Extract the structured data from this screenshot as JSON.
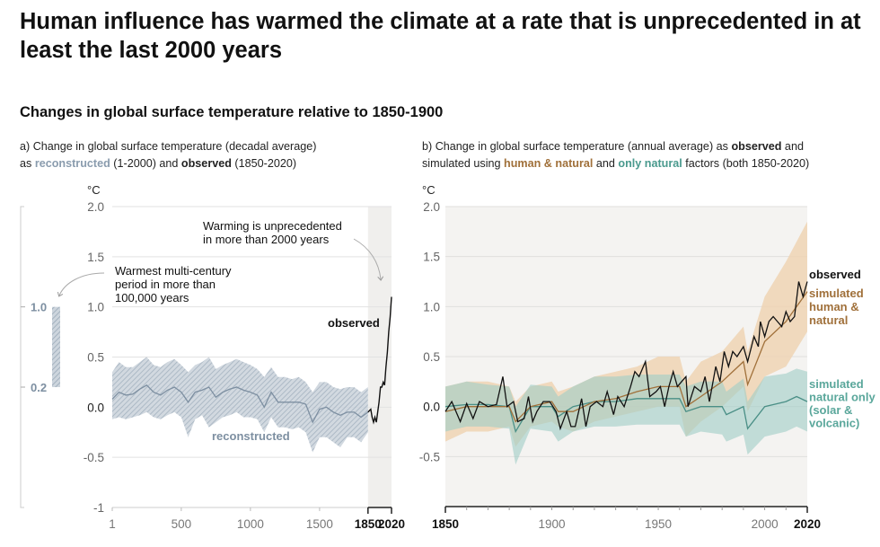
{
  "title": "Human influence has warmed the climate at a rate that is unprecedented in at least the last 2000 years",
  "subtitle": "Changes in global surface temperature relative to 1850-1900",
  "panel_a": {
    "caption_1": "a) Change in global surface temperature (decadal average)",
    "caption_as": "as ",
    "caption_reconstructed": "reconstructed",
    "caption_mid": " (1-2000) and ",
    "caption_observed": "observed",
    "caption_end": " (1850-2020)"
  },
  "panel_b": {
    "caption_1a": "b) Change in global surface temperature (annual average) as ",
    "caption_observed": "observed",
    "caption_1b": " and",
    "caption_2a": "simulated using ",
    "caption_human": "human & natural",
    "caption_2b": " and ",
    "caption_natural": "only natural",
    "caption_2c": " factors (both 1850-2020)"
  },
  "colors": {
    "reconstructed": "#7d8fa1",
    "reconstructed_band": "#b7c3cf",
    "observed": "#111111",
    "human_natural": "#a0703a",
    "human_natural_band": "#efd3b4",
    "natural_only": "#4a8f86",
    "natural_only_band": "#9fcdc6",
    "plot_bg": "#f4f3f1"
  },
  "chart_data": [
    {
      "type": "line",
      "panel": "a",
      "ylabel": "°C",
      "ylim": [
        -1,
        2
      ],
      "xlim": [
        1,
        2020
      ],
      "yticks": [
        "2.0",
        "1.5",
        "1.0",
        "0.5",
        "0.0",
        "-0.5",
        "-1"
      ],
      "ytick_values": [
        2,
        1.5,
        1,
        0.5,
        0,
        -0.5,
        -1
      ],
      "xticks": [
        "1",
        "500",
        "1000",
        "1500",
        "1850",
        "2020"
      ],
      "xtick_values": [
        1,
        500,
        1000,
        1500,
        1850,
        2020
      ],
      "grid": true,
      "highlight_range": [
        1850,
        2020
      ],
      "series": [
        {
          "name": "reconstructed",
          "x": [
            1,
            50,
            100,
            150,
            200,
            250,
            300,
            350,
            400,
            450,
            500,
            550,
            600,
            650,
            700,
            750,
            800,
            850,
            900,
            950,
            1000,
            1050,
            1100,
            1150,
            1200,
            1250,
            1300,
            1350,
            1400,
            1450,
            1500,
            1550,
            1600,
            1650,
            1700,
            1750,
            1800,
            1850
          ],
          "y": [
            0.08,
            0.15,
            0.12,
            0.13,
            0.18,
            0.22,
            0.15,
            0.12,
            0.17,
            0.2,
            0.15,
            0.05,
            0.15,
            0.17,
            0.2,
            0.1,
            0.15,
            0.18,
            0.2,
            0.17,
            0.15,
            0.12,
            0.0,
            0.15,
            0.05,
            0.05,
            0.05,
            0.05,
            0.03,
            -0.15,
            -0.02,
            0.0,
            -0.05,
            -0.08,
            -0.05,
            -0.05,
            -0.1,
            -0.05
          ],
          "lower": [
            -0.12,
            -0.1,
            -0.12,
            -0.1,
            -0.08,
            -0.05,
            -0.1,
            -0.12,
            -0.08,
            -0.05,
            -0.1,
            -0.3,
            -0.12,
            -0.08,
            -0.2,
            -0.15,
            -0.1,
            -0.08,
            -0.05,
            -0.1,
            -0.1,
            -0.12,
            -0.25,
            -0.1,
            -0.2,
            -0.2,
            -0.22,
            -0.2,
            -0.25,
            -0.45,
            -0.3,
            -0.3,
            -0.35,
            -0.4,
            -0.3,
            -0.3,
            -0.35,
            -0.25
          ],
          "upper": [
            0.35,
            0.45,
            0.4,
            0.4,
            0.45,
            0.5,
            0.42,
            0.4,
            0.45,
            0.48,
            0.42,
            0.35,
            0.42,
            0.45,
            0.5,
            0.38,
            0.42,
            0.45,
            0.48,
            0.45,
            0.42,
            0.38,
            0.3,
            0.4,
            0.3,
            0.3,
            0.28,
            0.3,
            0.25,
            0.15,
            0.25,
            0.25,
            0.2,
            0.18,
            0.2,
            0.2,
            0.15,
            0.2
          ]
        },
        {
          "name": "observed",
          "x": [
            1850,
            1870,
            1880,
            1890,
            1900,
            1910,
            1920,
            1930,
            1940,
            1950,
            1960,
            1970,
            1980,
            1990,
            2000,
            2010,
            2020
          ],
          "y": [
            -0.05,
            -0.02,
            -0.1,
            -0.15,
            -0.1,
            -0.15,
            -0.05,
            0.05,
            0.2,
            0.2,
            0.25,
            0.22,
            0.4,
            0.55,
            0.75,
            0.9,
            1.1
          ]
        }
      ],
      "side_scale": {
        "label_high": "1.0",
        "label_low": "0.2",
        "range": [
          0.2,
          1.0
        ]
      },
      "annotations": {
        "warmest": [
          "Warmest multi-century",
          "period in more than",
          "100,000 years"
        ],
        "unprecedented": [
          "Warming is unprecedented",
          "in more than 2000 years"
        ],
        "observed_label": "observed",
        "reconstructed_label": "reconstructed"
      }
    },
    {
      "type": "line",
      "panel": "b",
      "ylabel": "°C",
      "ylim": [
        -1,
        2
      ],
      "xlim": [
        1850,
        2020
      ],
      "yticks": [
        "2.0",
        "1.5",
        "1.0",
        "0.5",
        "0.0",
        "-0.5"
      ],
      "ytick_values": [
        2,
        1.5,
        1,
        0.5,
        0,
        -0.5
      ],
      "xticks": [
        "1850",
        "1900",
        "1950",
        "2000",
        "2020"
      ],
      "xtick_values": [
        1850,
        1900,
        1950,
        2000,
        2020
      ],
      "grid": true,
      "series": [
        {
          "name": "simulated human & natural",
          "label_lines": [
            "simulated",
            "human &",
            "natural"
          ],
          "x": [
            1850,
            1860,
            1870,
            1880,
            1883,
            1890,
            1900,
            1903,
            1910,
            1920,
            1930,
            1940,
            1950,
            1960,
            1963,
            1970,
            1980,
            1990,
            1992,
            2000,
            2010,
            2020
          ],
          "y": [
            -0.05,
            0.0,
            0.0,
            0.0,
            -0.15,
            0.0,
            0.05,
            -0.05,
            -0.05,
            0.05,
            0.08,
            0.15,
            0.2,
            0.2,
            0.0,
            0.1,
            0.25,
            0.45,
            0.22,
            0.65,
            0.85,
            1.15
          ],
          "lower": [
            -0.35,
            -0.25,
            -0.25,
            -0.2,
            -0.4,
            -0.2,
            -0.15,
            -0.2,
            -0.25,
            -0.15,
            -0.1,
            -0.05,
            0.0,
            0.0,
            -0.3,
            -0.15,
            0.0,
            0.2,
            -0.05,
            0.3,
            0.4,
            0.75
          ],
          "upper": [
            0.2,
            0.25,
            0.25,
            0.2,
            0.05,
            0.2,
            0.25,
            0.15,
            0.2,
            0.3,
            0.35,
            0.4,
            0.5,
            0.5,
            0.25,
            0.45,
            0.55,
            0.8,
            0.55,
            1.1,
            1.45,
            1.85
          ]
        },
        {
          "name": "simulated natural only (solar & volcanic)",
          "label_lines": [
            "simulated",
            "natural only",
            "(solar &",
            "volcanic)"
          ],
          "x": [
            1850,
            1860,
            1870,
            1880,
            1883,
            1890,
            1900,
            1903,
            1910,
            1920,
            1930,
            1940,
            1950,
            1960,
            1963,
            1970,
            1980,
            1982,
            1990,
            1992,
            2000,
            2010,
            2015,
            2020
          ],
          "y": [
            0.0,
            0.02,
            0.02,
            0.0,
            -0.25,
            0.0,
            0.0,
            -0.1,
            0.0,
            0.05,
            0.05,
            0.08,
            0.08,
            0.08,
            -0.05,
            0.0,
            0.0,
            -0.08,
            0.0,
            -0.22,
            0.0,
            0.05,
            0.1,
            0.05
          ],
          "lower": [
            -0.25,
            -0.2,
            -0.2,
            -0.22,
            -0.58,
            -0.22,
            -0.25,
            -0.35,
            -0.25,
            -0.2,
            -0.2,
            -0.18,
            -0.18,
            -0.18,
            -0.3,
            -0.25,
            -0.28,
            -0.35,
            -0.28,
            -0.48,
            -0.3,
            -0.25,
            -0.2,
            -0.25
          ],
          "upper": [
            0.2,
            0.25,
            0.22,
            0.2,
            0.0,
            0.22,
            0.2,
            0.1,
            0.2,
            0.3,
            0.3,
            0.32,
            0.32,
            0.32,
            0.2,
            0.25,
            0.25,
            0.15,
            0.28,
            0.05,
            0.3,
            0.33,
            0.38,
            0.35
          ]
        },
        {
          "name": "observed",
          "label_lines": [
            "observed"
          ],
          "x": [
            1850,
            1853,
            1857,
            1860,
            1863,
            1866,
            1870,
            1874,
            1877,
            1879,
            1882,
            1884,
            1887,
            1889,
            1891,
            1893,
            1896,
            1899,
            1902,
            1904,
            1907,
            1909,
            1911,
            1914,
            1916,
            1918,
            1921,
            1924,
            1926,
            1929,
            1931,
            1934,
            1937,
            1939,
            1941,
            1944,
            1946,
            1949,
            1951,
            1953,
            1955,
            1957,
            1959,
            1961,
            1963,
            1964,
            1967,
            1970,
            1972,
            1974,
            1977,
            1979,
            1981,
            1983,
            1985,
            1987,
            1990,
            1992,
            1995,
            1997,
            1998,
            2000,
            2002,
            2004,
            2006,
            2008,
            2010,
            2012,
            2014,
            2016,
            2018,
            2020
          ],
          "y": [
            -0.05,
            0.05,
            -0.15,
            0.03,
            -0.12,
            0.05,
            0.0,
            0.02,
            0.3,
            0.0,
            0.05,
            -0.15,
            -0.12,
            0.1,
            -0.15,
            -0.05,
            0.05,
            0.05,
            -0.05,
            -0.22,
            -0.05,
            -0.2,
            -0.2,
            0.08,
            -0.2,
            0.0,
            0.05,
            0.0,
            0.15,
            -0.08,
            0.1,
            0.0,
            0.2,
            0.35,
            0.3,
            0.45,
            0.1,
            0.15,
            0.2,
            0.0,
            0.2,
            0.35,
            0.2,
            0.25,
            0.3,
            0.0,
            0.2,
            0.15,
            0.3,
            0.05,
            0.4,
            0.25,
            0.55,
            0.4,
            0.55,
            0.5,
            0.6,
            0.45,
            0.7,
            0.6,
            0.85,
            0.7,
            0.85,
            0.9,
            0.85,
            0.8,
            0.95,
            0.85,
            0.9,
            1.25,
            1.1,
            1.25
          ]
        }
      ]
    }
  ]
}
